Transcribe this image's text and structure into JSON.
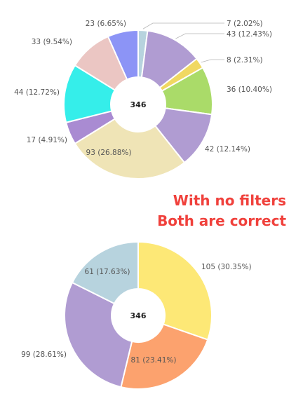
{
  "annotation": {
    "line1": "With no filters",
    "line2": "Both are correct",
    "color": "#f0413c"
  },
  "chart_data": [
    {
      "type": "pie",
      "donut": true,
      "center_label": "346",
      "start_angle_deg": 0,
      "slices": [
        {
          "value": 7,
          "percent": 2.02,
          "label": "7 (2.02%)",
          "color": "#b7d3de"
        },
        {
          "value": 43,
          "percent": 12.43,
          "label": "43 (12.43%)",
          "color": "#b09cd2"
        },
        {
          "value": 8,
          "percent": 2.31,
          "label": "8 (2.31%)",
          "color": "#f0d862"
        },
        {
          "value": 36,
          "percent": 10.4,
          "label": "36 (10.40%)",
          "color": "#aadb69"
        },
        {
          "value": 42,
          "percent": 12.14,
          "label": "42 (12.14%)",
          "color": "#b09cd2"
        },
        {
          "value": 93,
          "percent": 26.88,
          "label": "93 (26.88%)",
          "color": "#efe4b6"
        },
        {
          "value": 17,
          "percent": 4.91,
          "label": "17 (4.91%)",
          "color": "#a98bd2"
        },
        {
          "value": 44,
          "percent": 12.72,
          "label": "44 (12.72%)",
          "color": "#35eeea"
        },
        {
          "value": 33,
          "percent": 9.54,
          "label": "33 (9.54%)",
          "color": "#ebc6c3"
        },
        {
          "value": 23,
          "percent": 6.65,
          "label": "23 (6.65%)",
          "color": "#8c94f6"
        }
      ]
    },
    {
      "type": "pie",
      "donut": true,
      "center_label": "346",
      "start_angle_deg": 0,
      "slices": [
        {
          "value": 105,
          "percent": 30.35,
          "label": "105 (30.35%)",
          "color": "#fde876"
        },
        {
          "value": 81,
          "percent": 23.41,
          "label": "81 (23.41%)",
          "color": "#fca26e"
        },
        {
          "value": 99,
          "percent": 28.61,
          "label": "99 (28.61%)",
          "color": "#b09cd2"
        },
        {
          "value": 61,
          "percent": 17.63,
          "label": "61 (17.63%)",
          "color": "#b7d3de"
        }
      ]
    }
  ]
}
